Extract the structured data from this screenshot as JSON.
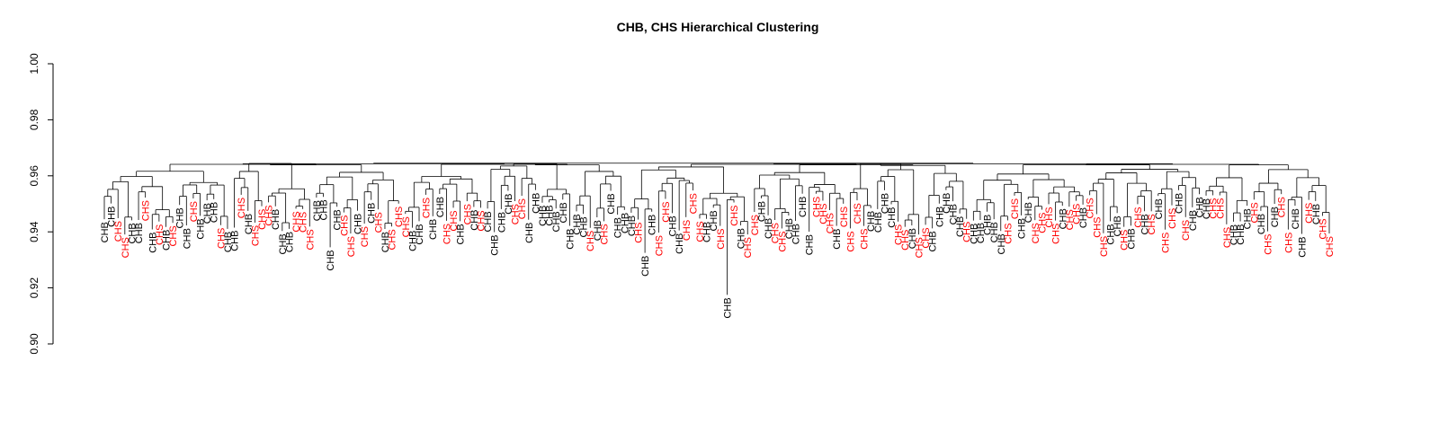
{
  "chart_data": {
    "type": "dendrogram",
    "title": "CHB, CHS Hierarchical Clustering",
    "xlabel": "",
    "ylabel": "",
    "ylim": [
      0.9,
      1.0
    ],
    "y_ticks": [
      "0.90",
      "0.92",
      "0.94",
      "0.96",
      "0.98",
      "1.00"
    ],
    "tick_values": [
      0.9,
      0.92,
      0.94,
      0.96,
      0.98,
      1.0
    ],
    "grid": false,
    "group_colors": {
      "CHB": "#000000",
      "CHS": "#ff0000"
    },
    "root_height": 0.9645,
    "leaf_heights_main": [
      0.9565,
      0.949
    ],
    "leaves": [
      "CHB",
      "CHB",
      "CHS",
      "CHS",
      "CHB",
      "CHB",
      "CHS",
      "CHB",
      "CHS",
      "CHB",
      "CHS",
      "CHB",
      "CHB",
      "CHS",
      "CHB",
      "CHB",
      "CHB",
      "CHS",
      "CHB",
      "CHB",
      "CHS",
      "CHB",
      "CHS",
      "CHS",
      "CHS",
      "CHB",
      "CHB",
      "CHB",
      "CHS",
      "CHS",
      "CHS",
      "CHB",
      "CHB",
      "CHB",
      "CHB",
      "CHS",
      "CHS",
      "CHB",
      "CHS",
      "CHB",
      "CHS",
      "CHB",
      "CHS",
      "CHS",
      "CHS",
      "CHB",
      "CHB",
      "CHS",
      "CHB",
      "CHB",
      "CHS",
      "CHS",
      "CHB",
      "CHS",
      "CHB",
      "CHS",
      "CHB",
      "CHB",
      "CHB",
      "CHB",
      "CHS",
      "CHS",
      "CHB",
      "CHB",
      "CHB",
      "CHB",
      "CHB",
      "CHB",
      "CHB",
      "CHB",
      "CHB",
      "CHS",
      "CHB",
      "CHS",
      "CHB",
      "CHB",
      "CHB",
      "CHB",
      "CHS",
      "CHB",
      "CHB",
      "CHS",
      "CHS",
      "CHB",
      "CHB",
      "CHS",
      "CHS",
      "CHS",
      "CHB",
      "CHB",
      "CHS",
      "CHB",
      "CHS",
      "CHB",
      "CHS",
      "CHS",
      "CHB",
      "CHB",
      "CHS",
      "CHS",
      "CHB",
      "CHB",
      "CHB",
      "CHB",
      "CHS",
      "CHS",
      "CHS",
      "CHB",
      "CHS",
      "CHS",
      "CHS",
      "CHS",
      "CHB",
      "CHB",
      "CHB",
      "CHB",
      "CHS",
      "CHS",
      "CHB",
      "CHS",
      "CHS",
      "CHB",
      "CHB",
      "CHB",
      "CHB",
      "CHB",
      "CHS",
      "CHB",
      "CHB",
      "CHB",
      "CHB",
      "CHB",
      "CHS",
      "CHS",
      "CHB",
      "CHB",
      "CHS",
      "CHS",
      "CHS",
      "CHS",
      "CHB",
      "CHS",
      "CHS",
      "CHB",
      "CHS",
      "CHS",
      "CHS",
      "CHB",
      "CHB",
      "CHS",
      "CHB",
      "CHS",
      "CHB",
      "CHS",
      "CHB",
      "CHS",
      "CHS",
      "CHB",
      "CHS",
      "CHB",
      "CHB",
      "CHB",
      "CHS",
      "CHS",
      "CHS",
      "CHB",
      "CHB",
      "CHB",
      "CHS",
      "CHB",
      "CHS",
      "CHB",
      "CHS",
      "CHS",
      "CHB",
      "CHB",
      "CHS",
      "CHB",
      "CHS",
      "CHS"
    ]
  }
}
